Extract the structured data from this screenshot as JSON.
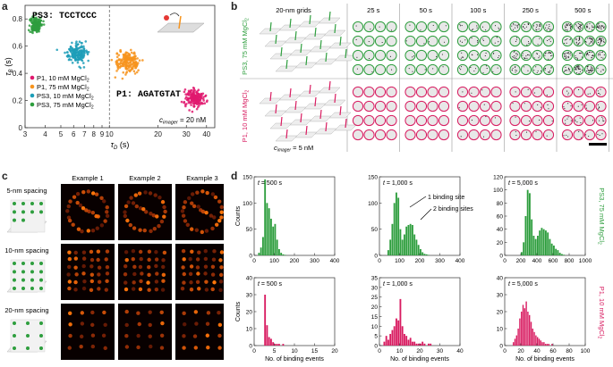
{
  "panel_labels": {
    "a": "a",
    "b": "b",
    "c": "c",
    "d": "d"
  },
  "a": {
    "seq_ps3": "PS3: TCCTCCC",
    "seq_p1": "P1: AGATGTAT",
    "cimager": "c",
    "cimager_sub": "imager",
    "cimager_val": "= 20 nM",
    "ylabel": "τ",
    "ylabel_sub": "B",
    "ylabel_unit": "(s)",
    "xlabel": "τ",
    "xlabel_sub": "D",
    "xlabel_unit": "(s)",
    "legend": [
      {
        "label": "P1, 10 mM MgCl",
        "sub": "2",
        "color": "#e0196e"
      },
      {
        "label": "P1, 75 mM MgCl",
        "sub": "2",
        "color": "#f7941d"
      },
      {
        "label": "PS3, 10 mM MgCl",
        "sub": "2",
        "color": "#1d9eb8"
      },
      {
        "label": "PS3, 75 mM MgCl",
        "sub": "2",
        "color": "#2e9e3e"
      }
    ]
  },
  "chart_data": [
    {
      "type": "scatter",
      "xscale": "log",
      "xlabel": "τD (s)",
      "ylabel": "τB (s)",
      "xticks": [
        3,
        4,
        5,
        6,
        7,
        8,
        9,
        10,
        20,
        30,
        40
      ],
      "xlim": [
        3,
        45
      ],
      "ylim": [
        0,
        0.9
      ],
      "yticks": [
        0,
        0.2,
        0.4,
        0.6,
        0.8
      ],
      "series": [
        {
          "name": "P1, 10 mM MgCl2",
          "center": [
            34,
            0.22
          ],
          "spread": [
            5,
            0.06
          ],
          "color": "#e0196e"
        },
        {
          "name": "P1, 75 mM MgCl2",
          "center": [
            13,
            0.48
          ],
          "spread": [
            2.5,
            0.07
          ],
          "color": "#f7941d"
        },
        {
          "name": "PS3, 10 mM MgCl2",
          "center": [
            6.3,
            0.55
          ],
          "spread": [
            1,
            0.06
          ],
          "color": "#1d9eb8"
        },
        {
          "name": "PS3, 75 mM MgCl2",
          "center": [
            3.5,
            0.76
          ],
          "spread": [
            0.3,
            0.05
          ],
          "color": "#2e9e3e"
        }
      ]
    },
    {
      "type": "bar",
      "xlabel": "No. of binding events",
      "ylabel": "Counts",
      "condition": "PS3, 75 mM MgCl2",
      "t": "t = 500 s",
      "xlim": [
        0,
        400
      ],
      "xticks": [
        0,
        100,
        200,
        300,
        400
      ],
      "ylim": [
        0,
        150
      ],
      "yticks": [
        0,
        50,
        100,
        150
      ],
      "bin_width": 10,
      "bin_start": 0,
      "values": [
        0,
        0,
        5,
        15,
        35,
        145,
        100,
        90,
        70,
        55,
        60,
        30,
        12,
        5,
        2,
        1
      ]
    },
    {
      "type": "bar",
      "xlabel": "No. of binding events",
      "ylabel": "Counts",
      "condition": "PS3, 75 mM MgCl2",
      "t": "t = 1,000 s",
      "xlim": [
        0,
        400
      ],
      "xticks": [
        0,
        100,
        200,
        300,
        400
      ],
      "ylim": [
        0,
        150
      ],
      "yticks": [
        0,
        50,
        100,
        150
      ],
      "bin_width": 10,
      "bin_start": 40,
      "values": [
        10,
        30,
        60,
        100,
        120,
        110,
        50,
        30,
        40,
        55,
        58,
        60,
        58,
        40,
        30,
        20,
        12,
        6,
        3,
        2,
        1
      ]
    },
    {
      "type": "bar",
      "xlabel": "No. of binding events",
      "ylabel": "Counts",
      "condition": "PS3, 75 mM MgCl2",
      "t": "t = 5,000 s",
      "xlim": [
        0,
        1000
      ],
      "xticks": [
        0,
        200,
        400,
        600,
        800,
        1000
      ],
      "ylim": [
        0,
        120
      ],
      "yticks": [
        0,
        20,
        40,
        60,
        80,
        100,
        120
      ],
      "bin_width": 25,
      "bin_start": 200,
      "values": [
        5,
        20,
        60,
        100,
        95,
        55,
        30,
        25,
        30,
        38,
        42,
        40,
        38,
        35,
        25,
        18,
        15,
        10,
        8,
        4,
        2,
        1
      ]
    },
    {
      "type": "bar",
      "xlabel": "No. of binding events",
      "ylabel": "Counts",
      "condition": "P1, 10 mM MgCl2",
      "t": "t = 500 s",
      "xlim": [
        0,
        20
      ],
      "xticks": [
        0,
        5,
        10,
        15,
        20
      ],
      "ylim": [
        0,
        40
      ],
      "yticks": [
        0,
        10,
        20,
        30,
        40
      ],
      "bin_width": 0.5,
      "bin_start": 2,
      "values": [
        0,
        30,
        12,
        5,
        4,
        2,
        1,
        1,
        1,
        0,
        1
      ]
    },
    {
      "type": "bar",
      "xlabel": "No. of binding events",
      "ylabel": "Counts",
      "condition": "P1, 10 mM MgCl2",
      "t": "t = 1,000 s",
      "xlim": [
        0,
        40
      ],
      "xticks": [
        0,
        10,
        20,
        30,
        40
      ],
      "ylim": [
        0,
        35
      ],
      "yticks": [
        0,
        5,
        10,
        15,
        20,
        25,
        30,
        35
      ],
      "bin_width": 1,
      "bin_start": 2,
      "values": [
        2,
        5,
        3,
        6,
        8,
        10,
        14,
        13,
        24,
        10,
        6,
        5,
        3,
        4,
        2,
        2,
        1,
        1,
        1,
        2,
        1,
        0,
        1,
        1
      ]
    },
    {
      "type": "bar",
      "xlabel": "No. of binding events",
      "ylabel": "Counts",
      "condition": "P1, 10 mM MgCl2",
      "t": "t = 5,000 s",
      "xlim": [
        0,
        100
      ],
      "xticks": [
        0,
        20,
        40,
        60,
        80,
        100
      ],
      "ylim": [
        0,
        40
      ],
      "yticks": [
        0,
        10,
        20,
        30,
        40
      ],
      "bin_width": 2,
      "bin_start": 10,
      "values": [
        2,
        4,
        6,
        10,
        16,
        20,
        24,
        22,
        26,
        20,
        18,
        14,
        10,
        8,
        6,
        5,
        4,
        3,
        2,
        2,
        1,
        1,
        1,
        0,
        1
      ]
    }
  ],
  "b": {
    "grid_label": "20-nm grids",
    "times": [
      "25 s",
      "50 s",
      "100 s",
      "250 s",
      "500 s"
    ],
    "row1_label": "PS3, 75 mM MgCl",
    "row1_sub": "2",
    "row2_label": "P1, 10 mM MgCl",
    "row2_sub": "2",
    "cimager": "c",
    "cimager_sub": "imager",
    "cimager_val": "= 5 nM",
    "green": "#2e9e3e",
    "pink": "#d81b60"
  },
  "c": {
    "rows": [
      "5-nm spacing",
      "10-nm spacing",
      "20-nm spacing"
    ],
    "cols": [
      "Example 1",
      "Example 2",
      "Example 3"
    ]
  },
  "d": {
    "row1_label": "PS3, 75 mM MgCl",
    "row1_sub": "2",
    "row2_label": "P1, 10 mM MgCl",
    "row2_sub": "2",
    "ann1": "1 binding site",
    "ann2": "2 binding sites",
    "t_prefix": "t"
  }
}
